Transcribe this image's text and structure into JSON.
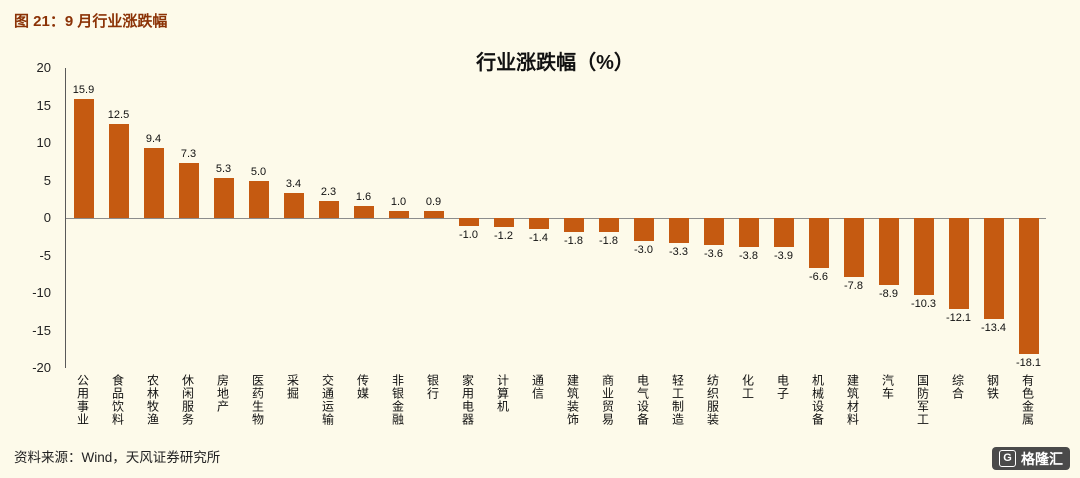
{
  "page": {
    "figure_title": "图 21：9 月行业涨跌幅",
    "source": "资料来源：Wind，天风证券研究所",
    "logo_letter": "G",
    "logo_text": "格隆汇",
    "colors": {
      "heading": "#8B3206",
      "bar": "#C55A11",
      "background": "#FDFAEA"
    }
  },
  "chart_data": {
    "type": "bar",
    "title": "行业涨跌幅（%）",
    "categories": [
      "公用事业",
      "食品饮料",
      "农林牧渔",
      "休闲服务",
      "房地产",
      "医药生物",
      "采掘",
      "交通运输",
      "传媒",
      "非银金融",
      "银行",
      "家用电器",
      "计算机",
      "通信",
      "建筑装饰",
      "商业贸易",
      "电气设备",
      "轻工制造",
      "纺织服装",
      "化工",
      "电子",
      "机械设备",
      "建筑材料",
      "汽车",
      "国防军工",
      "综合",
      "钢铁",
      "有色金属"
    ],
    "values": [
      15.9,
      12.5,
      9.4,
      7.3,
      5.3,
      5.0,
      3.4,
      2.3,
      1.6,
      1.0,
      0.9,
      -1.0,
      -1.2,
      -1.4,
      -1.8,
      -1.8,
      -3.0,
      -3.3,
      -3.6,
      -3.8,
      -3.9,
      -6.6,
      -7.8,
      -8.9,
      -10.3,
      -12.1,
      -13.4,
      -18.1
    ],
    "xlabel": "",
    "ylabel": "",
    "ylim": [
      -20,
      20
    ],
    "yticks": [
      20,
      15,
      10,
      5,
      0,
      -5,
      -10,
      -15,
      -20
    ],
    "bar_color": "#C55A11",
    "grid": false,
    "legend": false
  }
}
